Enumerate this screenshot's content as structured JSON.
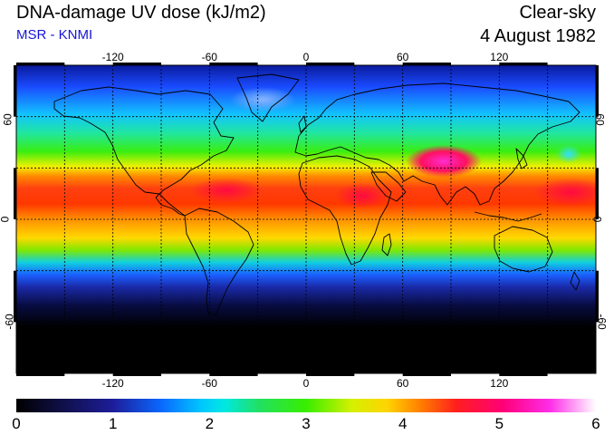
{
  "header": {
    "title": "DNA-damage UV dose (kJ/m2)",
    "subtitle": "MSR - KNMI",
    "condition": "Clear-sky",
    "date": "4 August 1982"
  },
  "map": {
    "longitude_ticks": [
      "-120",
      "-60",
      "0",
      "60",
      "120"
    ],
    "longitude_values": [
      -120,
      -60,
      0,
      60,
      120
    ],
    "latitude_ticks_left": [
      "60",
      "0",
      "-60"
    ],
    "latitude_ticks_right": [
      "60",
      "0",
      "-60"
    ],
    "latitude_values": [
      60,
      0,
      -60
    ],
    "lon_range": [
      -180,
      180
    ],
    "lat_range": [
      -90,
      90
    ],
    "grid": "dashed, every 30 degrees"
  },
  "colorbar": {
    "labels": [
      "0",
      "1",
      "2",
      "3",
      "4",
      "5",
      "6"
    ],
    "values": [
      0,
      1,
      2,
      3,
      4,
      5,
      6
    ],
    "colors": [
      "#000000",
      "#1d1d9a",
      "#0a68ff",
      "#00e8ff",
      "#22e060",
      "#38ee00",
      "#d6f000",
      "#ffd400",
      "#ff7a00",
      "#ff1e1e",
      "#ff0078",
      "#ff2ce8",
      "#ffffff"
    ]
  }
}
